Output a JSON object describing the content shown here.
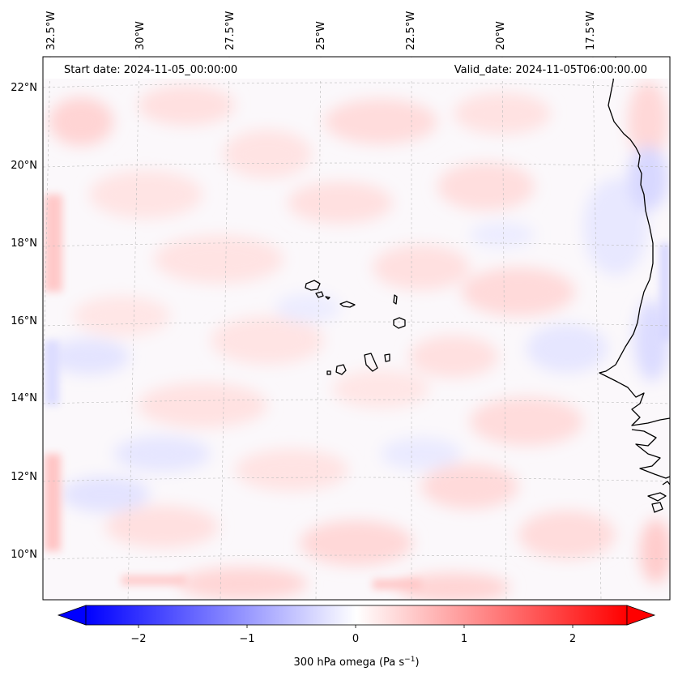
{
  "header": {
    "start_date": "Start date: 2024-11-05_00:00:00",
    "valid_date": "Valid_date: 2024-11-05T06:00:00.00"
  },
  "axes": {
    "lon_labels": [
      "32.5°W",
      "30°W",
      "27.5°W",
      "25°W",
      "22.5°W",
      "20°W",
      "17.5°W"
    ],
    "lat_labels": [
      "22°N",
      "20°N",
      "18°N",
      "16°N",
      "14°N",
      "12°N",
      "10°N"
    ]
  },
  "colorbar": {
    "label": "300 hPa omega (Pa s",
    "label_sup": "−1",
    "label_end": ")",
    "ticks": [
      "−2",
      "−1",
      "0",
      "1",
      "2"
    ],
    "range": [
      -2.7,
      2.7
    ],
    "colors": {
      "negative": "#0000ff",
      "zero": "#ffffff",
      "positive": "#ff0000"
    }
  },
  "chart_data": {
    "type": "heatmap",
    "title": "",
    "variable": "300 hPa omega",
    "units": "Pa s^-1",
    "lon_range": [
      -33,
      -15.5
    ],
    "lat_range": [
      8.9,
      22.8
    ],
    "grid": true,
    "coastlines": true,
    "colormap": "bwr",
    "value_range": [
      -2.7,
      2.7
    ]
  }
}
